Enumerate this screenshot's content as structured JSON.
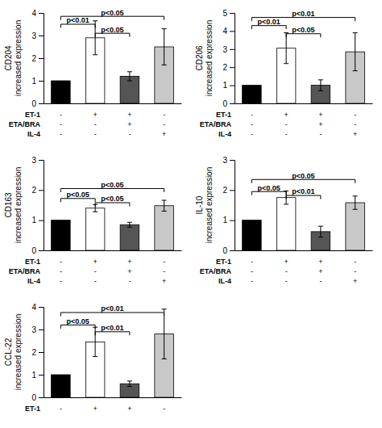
{
  "chart_data": [
    {
      "type": "bar",
      "ylabel": "CD204\nincreased expression",
      "categories": [
        null,
        null,
        null,
        null
      ],
      "values": [
        1.0,
        2.9,
        1.2,
        2.5
      ],
      "errors": [
        0.0,
        0.75,
        0.2,
        0.8
      ],
      "colors": [
        "#000000",
        "#ffffff",
        "#555555",
        "#c8c8c8"
      ],
      "ylim": [
        0,
        4
      ],
      "yticks": [
        0,
        1,
        2,
        3,
        4
      ],
      "annotations": [
        {
          "x1": 0,
          "x2": 1,
          "y": 3.5,
          "label": "p<0.01"
        },
        {
          "x1": 1,
          "x2": 2,
          "y": 3.1,
          "label": "p<0.05"
        },
        {
          "x1": 0,
          "x2": 3,
          "y": 3.85,
          "label": "p<0.05"
        }
      ],
      "table": [
        {
          "label": "ET-1",
          "values": [
            "-",
            "+",
            "+",
            "-"
          ]
        },
        {
          "label": "ETA/BRA",
          "values": [
            "-",
            "-",
            "+",
            "-"
          ]
        },
        {
          "label": "IL-4",
          "values": [
            "-",
            "-",
            "-",
            "+"
          ]
        }
      ]
    },
    {
      "type": "bar",
      "ylabel": "CD206\nincreased expression",
      "categories": [
        null,
        null,
        null,
        null
      ],
      "values": [
        1.0,
        3.05,
        1.0,
        2.85
      ],
      "errors": [
        0.0,
        0.85,
        0.3,
        1.05
      ],
      "colors": [
        "#000000",
        "#ffffff",
        "#555555",
        "#c8c8c8"
      ],
      "ylim": [
        0,
        5
      ],
      "yticks": [
        0,
        1,
        2,
        3,
        4,
        5
      ],
      "annotations": [
        {
          "x1": 0,
          "x2": 1,
          "y": 4.3,
          "label": "p<0.01"
        },
        {
          "x1": 1,
          "x2": 2,
          "y": 3.85,
          "label": "p<0.05"
        },
        {
          "x1": 0,
          "x2": 3,
          "y": 4.75,
          "label": "p<0.01"
        }
      ],
      "table": [
        {
          "label": "ET-1",
          "values": [
            "-",
            "+",
            "+",
            "-"
          ]
        },
        {
          "label": "ETA/BRA",
          "values": [
            "-",
            "-",
            "+",
            "-"
          ]
        },
        {
          "label": "IL-4",
          "values": [
            "-",
            "-",
            "-",
            "+"
          ]
        }
      ]
    },
    {
      "type": "bar",
      "ylabel": "CD163\nincreased expression",
      "categories": [
        null,
        null,
        null,
        null
      ],
      "values": [
        1.0,
        1.4,
        0.85,
        1.48
      ],
      "errors": [
        0.0,
        0.12,
        0.08,
        0.18
      ],
      "colors": [
        "#000000",
        "#ffffff",
        "#555555",
        "#c8c8c8"
      ],
      "ylim": [
        0,
        3
      ],
      "yticks": [
        0,
        1,
        2,
        3
      ],
      "annotations": [
        {
          "x1": 0,
          "x2": 1,
          "y": 1.72,
          "label": "p<0.05"
        },
        {
          "x1": 1,
          "x2": 2,
          "y": 1.58,
          "label": "p<0.05"
        },
        {
          "x1": 0,
          "x2": 3,
          "y": 2.05,
          "label": "p<0.05"
        }
      ],
      "table": [
        {
          "label": "ET-1",
          "values": [
            "-",
            "+",
            "+",
            "-"
          ]
        },
        {
          "label": "ETA/BRA",
          "values": [
            "-",
            "-",
            "+",
            "-"
          ]
        },
        {
          "label": "IL-4",
          "values": [
            "-",
            "-",
            "-",
            "+"
          ]
        }
      ]
    },
    {
      "type": "bar",
      "ylabel": "IL-10\nincreased expression",
      "categories": [
        null,
        null,
        null,
        null
      ],
      "values": [
        1.0,
        1.75,
        0.62,
        1.58
      ],
      "errors": [
        0.0,
        0.22,
        0.18,
        0.22
      ],
      "colors": [
        "#000000",
        "#ffffff",
        "#555555",
        "#c8c8c8"
      ],
      "ylim": [
        0,
        3
      ],
      "yticks": [
        0,
        1,
        2,
        3
      ],
      "annotations": [
        {
          "x1": 0,
          "x2": 1,
          "y": 1.95,
          "label": "p<0.05"
        },
        {
          "x1": 1,
          "x2": 2,
          "y": 1.82,
          "label": "p<0.01"
        },
        {
          "x1": 0,
          "x2": 3,
          "y": 2.35,
          "label": "p<0.05"
        }
      ],
      "table": [
        {
          "label": "ET-1",
          "values": [
            "-",
            "+",
            "+",
            "-"
          ]
        },
        {
          "label": "ETA/BRA",
          "values": [
            "-",
            "-",
            "+",
            "-"
          ]
        },
        {
          "label": "IL-4",
          "values": [
            "-",
            "-",
            "-",
            "+"
          ]
        }
      ]
    },
    {
      "type": "bar",
      "ylabel": "CCL-22\nincreased expression",
      "categories": [
        null,
        null,
        null,
        null
      ],
      "values": [
        1.0,
        2.45,
        0.6,
        2.8
      ],
      "errors": [
        0.0,
        0.65,
        0.12,
        1.1
      ],
      "colors": [
        "#000000",
        "#ffffff",
        "#555555",
        "#c8c8c8"
      ],
      "ylim": [
        0,
        4
      ],
      "yticks": [
        0,
        1,
        2,
        3,
        4
      ],
      "annotations": [
        {
          "x1": 0,
          "x2": 1,
          "y": 3.2,
          "label": "p<0.05"
        },
        {
          "x1": 1,
          "x2": 2,
          "y": 2.9,
          "label": "p<0.01"
        },
        {
          "x1": 0,
          "x2": 3,
          "y": 3.75,
          "label": "p<0.01"
        }
      ],
      "table": [
        {
          "label": "ET-1",
          "values": [
            "-",
            "+",
            "+",
            "-"
          ]
        }
      ]
    }
  ]
}
